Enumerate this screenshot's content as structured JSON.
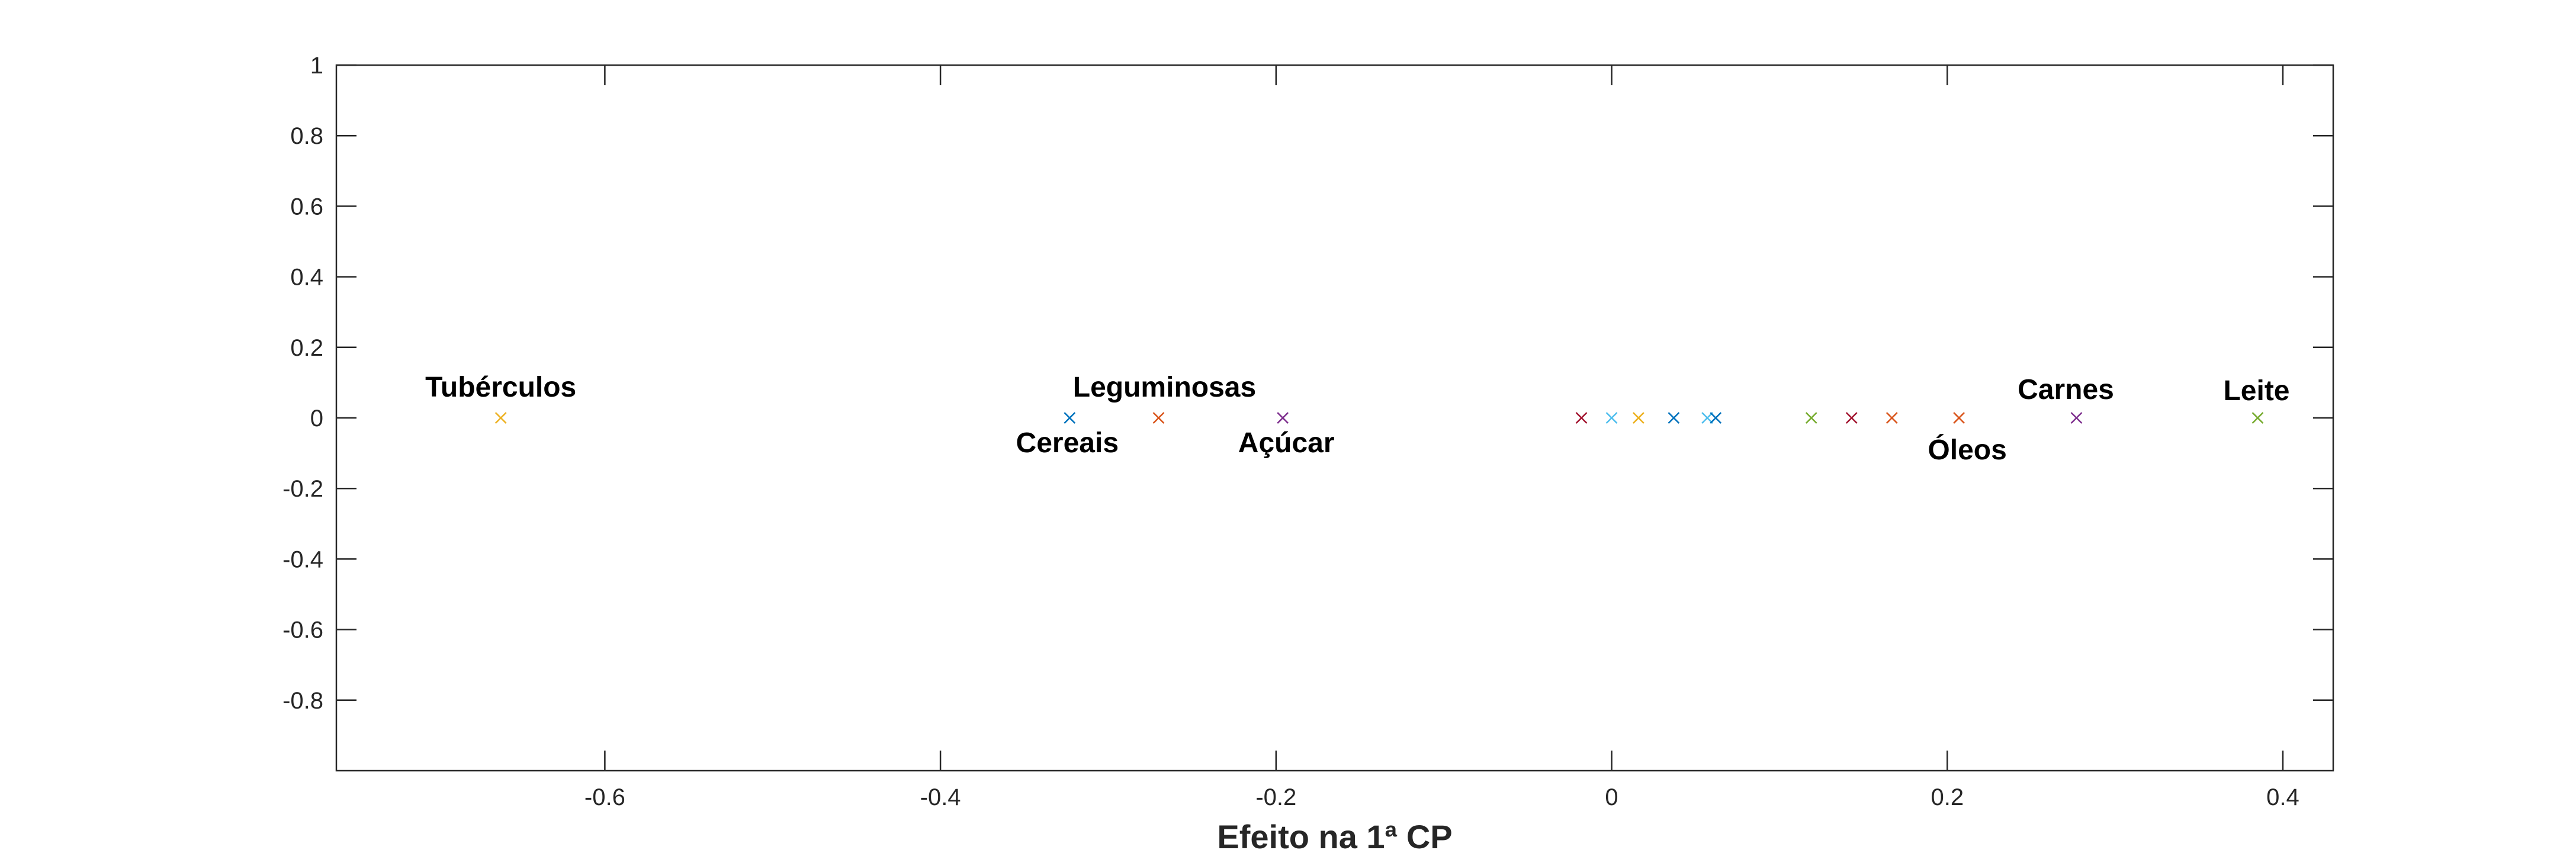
{
  "chart_data": {
    "type": "scatter",
    "title": "",
    "xlabel": "Efeito na 1ª CP",
    "ylabel": "",
    "xlim": [
      -0.76,
      0.43
    ],
    "ylim": [
      -1,
      1
    ],
    "grid": false,
    "marker": "x",
    "x_ticks": [
      -0.6,
      -0.4,
      -0.2,
      0,
      0.2,
      0.4
    ],
    "y_ticks": [
      -0.8,
      -0.6,
      -0.4,
      -0.2,
      0,
      0.2,
      0.4,
      0.6,
      0.8,
      1
    ],
    "points": [
      {
        "x": -0.662,
        "y": 0,
        "color": "#EDB120",
        "label": "Tubérculos"
      },
      {
        "x": -0.323,
        "y": 0,
        "color": "#0072BD",
        "label": "Cereais"
      },
      {
        "x": -0.27,
        "y": 0,
        "color": "#D95319",
        "label": "Leguminosas"
      },
      {
        "x": -0.196,
        "y": 0,
        "color": "#7E2F8E",
        "label": "Açúcar"
      },
      {
        "x": -0.018,
        "y": 0,
        "color": "#A2142F",
        "label": ""
      },
      {
        "x": 0.0,
        "y": 0,
        "color": "#4DBEEE",
        "label": ""
      },
      {
        "x": 0.016,
        "y": 0,
        "color": "#EDB120",
        "label": ""
      },
      {
        "x": 0.037,
        "y": 0,
        "color": "#0072BD",
        "label": ""
      },
      {
        "x": 0.057,
        "y": 0,
        "color": "#4DBEEE",
        "label": ""
      },
      {
        "x": 0.062,
        "y": 0,
        "color": "#0072BD",
        "label": ""
      },
      {
        "x": 0.119,
        "y": 0,
        "color": "#77AC30",
        "label": ""
      },
      {
        "x": 0.143,
        "y": 0,
        "color": "#A2142F",
        "label": ""
      },
      {
        "x": 0.167,
        "y": 0,
        "color": "#D95319",
        "label": ""
      },
      {
        "x": 0.207,
        "y": 0,
        "color": "#D95319",
        "label": "Óleos"
      },
      {
        "x": 0.277,
        "y": 0,
        "color": "#7E2F8E",
        "label": "Carnes"
      },
      {
        "x": 0.385,
        "y": 0,
        "color": "#77AC30",
        "label": "Leite"
      }
    ]
  }
}
